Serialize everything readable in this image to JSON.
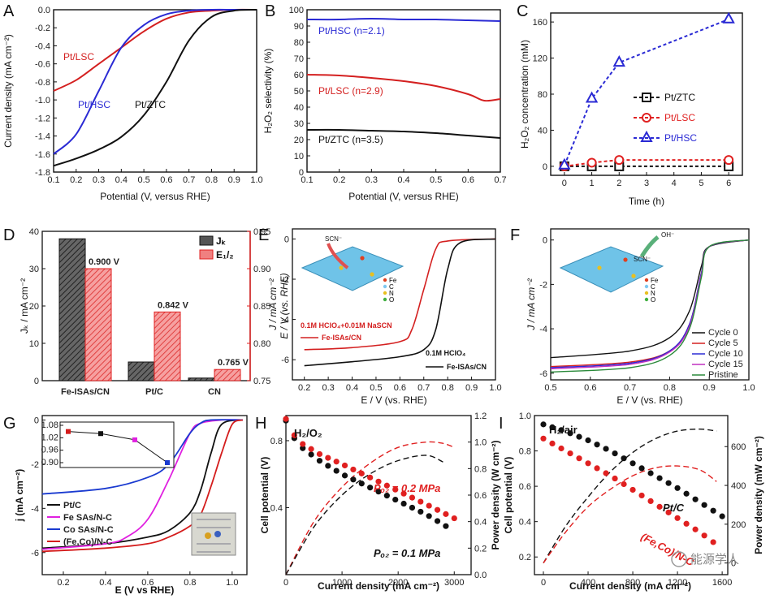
{
  "panels": {
    "A": {
      "letter": "A",
      "ylabel": "Current density (mA cm⁻²)",
      "xlabel": "Potential (V, versus RHE)",
      "xlim": [
        0.1,
        1.0
      ],
      "ylim": [
        -1.8,
        0.0
      ],
      "xticks": [
        "0.1",
        "0.2",
        "0.3",
        "0.4",
        "0.5",
        "0.6",
        "0.7",
        "0.8",
        "0.9",
        "1.0"
      ],
      "yticks": [
        "0.0",
        "-0.2",
        "-0.4",
        "-0.6",
        "-0.8",
        "-1.0",
        "-1.2",
        "-1.4",
        "-1.6",
        "-1.8"
      ],
      "labels": [
        "Pt/LSC",
        "Pt/HSC",
        "Pt/ZTC"
      ],
      "colors": [
        "#d42020",
        "#2a2ad4",
        "#111111"
      ]
    },
    "B": {
      "letter": "B",
      "ylabel": "H₂O₂ selectivity (%)",
      "xlabel": "Potential (V, versus RHE)",
      "xlim": [
        0.1,
        0.7
      ],
      "ylim": [
        0,
        100
      ],
      "xticks": [
        "0.1",
        "0.2",
        "0.3",
        "0.4",
        "0.5",
        "0.6",
        "0.7"
      ],
      "yticks": [
        "0",
        "10",
        "20",
        "30",
        "40",
        "50",
        "60",
        "70",
        "80",
        "90",
        "100"
      ],
      "labels": [
        "Pt/HSC (n=2.1)",
        "Pt/LSC (n=2.9)",
        "Pt/ZTC (n=3.5)"
      ]
    },
    "C": {
      "letter": "C",
      "ylabel": "H₂O₂ concentration (mM)",
      "xlabel": "Time (h)",
      "xlim": [
        0,
        6
      ],
      "ylim": [
        0,
        160
      ],
      "xticks": [
        "0",
        "1",
        "2",
        "3",
        "4",
        "5",
        "6"
      ],
      "yticks": [
        "0",
        "40",
        "80",
        "120",
        "160"
      ],
      "legend": [
        "Pt/ZTC",
        "Pt/LSC",
        "Pt/HSC"
      ]
    },
    "D": {
      "letter": "D",
      "ylabel_left": "Jₖ / mA cm⁻²",
      "ylabel_right": "E / V (vs. RHE)",
      "legend": [
        "Jₖ",
        "E₁/₂"
      ],
      "categories": [
        "Fe-ISAs/CN",
        "Pt/C",
        "CN"
      ],
      "yticks_left": [
        "0",
        "10",
        "20",
        "30",
        "40"
      ],
      "yticks_right": [
        "0.75",
        "0.80",
        "0.85",
        "0.90",
        "0.95"
      ],
      "annotations": [
        "0.900 V",
        "0.842 V",
        "0.765 V"
      ]
    },
    "E": {
      "letter": "E",
      "ylabel": "J / mA cm⁻²",
      "xlabel": "E / V (vs. RHE)",
      "xticks": [
        "0.2",
        "0.3",
        "0.4",
        "0.5",
        "0.6",
        "0.7",
        "0.8",
        "0.9",
        "1.0"
      ],
      "yticks": [
        "0",
        "-2",
        "-4",
        "-6"
      ],
      "ion": "SCN⁻",
      "atoms": [
        "Fe",
        "C",
        "N",
        "O"
      ],
      "red_condition": "0.1M HClO₄+0.01M NaSCN",
      "red_label": "Fe-ISAs/CN",
      "black_condition": "0.1M HClO₄",
      "black_label": "Fe-ISAs/CN"
    },
    "F": {
      "letter": "F",
      "ylabel": "J / mA cm⁻²",
      "xlabel": "E / V (vs. RHE)",
      "xticks": [
        "0.5",
        "0.6",
        "0.7",
        "0.8",
        "0.9",
        "1.0"
      ],
      "yticks": [
        "0",
        "-2",
        "-4",
        "-6"
      ],
      "ions": [
        "OH⁻",
        "SCN⁻"
      ],
      "atoms": [
        "Fe",
        "C",
        "N",
        "O"
      ],
      "legend": [
        "Cycle 0",
        "Cycle 5",
        "Cycle 10",
        "Cycle 15",
        "Pristine"
      ],
      "colors": [
        "#111111",
        "#d42020",
        "#2a2ad4",
        "#c030c0",
        "#2a8a3a"
      ]
    },
    "G": {
      "letter": "G",
      "ylabel": "j (mA cm⁻²)",
      "xlabel": "E (V vs RHE)",
      "xticks": [
        "0.2",
        "0.4",
        "0.6",
        "0.8",
        "1.0"
      ],
      "yticks": [
        "0",
        "-2",
        "-4",
        "-6"
      ],
      "inset_yticks": [
        "1.08",
        "1.02",
        "0.96",
        "0.90"
      ],
      "legend": [
        "Pt/C",
        "Fe SAs/N-C",
        "Co SAs/N-C",
        "(Fe,Co)/N-C"
      ],
      "colors": [
        "#111111",
        "#e020e0",
        "#1a3ad0",
        "#d41c1c"
      ]
    },
    "H": {
      "letter": "H",
      "gas": "H₂/O₂",
      "ylabel": "Cell potential (V)",
      "ylabel_right": "Power density (W cm⁻²)",
      "xlabel": "Current density (mA cm⁻²)",
      "xticks": [
        "0",
        "1000",
        "2000",
        "3000"
      ],
      "yticks": [
        "0.4",
        "0.8"
      ],
      "yticks_right": [
        "0.0",
        "0.2",
        "0.4",
        "0.6",
        "0.8",
        "1.0",
        "1.2"
      ],
      "label_red": "Pₒ₂ = 0.2 MPa",
      "label_black": "Pₒ₂ = 0.1 MPa"
    },
    "I": {
      "letter": "I",
      "gas": "H₂/air",
      "ylabel": "Cell potential (V)",
      "ylabel_right": "Power density (mW cm⁻²)",
      "xlabel": "Current density (mA cm⁻²)",
      "xticks": [
        "0",
        "400",
        "800",
        "1200",
        "1600"
      ],
      "yticks": [
        "0.2",
        "0.4",
        "0.6",
        "0.8",
        "1.0"
      ],
      "yticks_right": [
        "0",
        "200",
        "400",
        "600"
      ],
      "label_black": "Pt/C",
      "label_red": "(Fe,Co)/N-C",
      "watermark": "能源学人"
    }
  },
  "chart_data": [
    {
      "panel": "A",
      "type": "line",
      "xlabel": "Potential (V, versus RHE)",
      "ylabel": "Current density (mA cm-2)",
      "series": [
        {
          "name": "Pt/LSC",
          "x": [
            0.1,
            0.2,
            0.3,
            0.4,
            0.5,
            0.6,
            0.7,
            0.8,
            0.9,
            1.0
          ],
          "values": [
            -0.9,
            -0.78,
            -0.6,
            -0.42,
            -0.24,
            -0.1,
            -0.03,
            -0.01,
            0,
            0
          ]
        },
        {
          "name": "Pt/HSC",
          "x": [
            0.1,
            0.2,
            0.3,
            0.4,
            0.5,
            0.6,
            0.7,
            0.8,
            0.9,
            1.0
          ],
          "values": [
            -1.6,
            -1.38,
            -0.9,
            -0.42,
            -0.17,
            -0.05,
            -0.01,
            0,
            0,
            0
          ]
        },
        {
          "name": "Pt/ZTC",
          "x": [
            0.1,
            0.2,
            0.3,
            0.4,
            0.5,
            0.6,
            0.7,
            0.8,
            0.9,
            1.0
          ],
          "values": [
            -1.73,
            -1.65,
            -1.55,
            -1.41,
            -1.17,
            -0.8,
            -0.34,
            -0.08,
            -0.01,
            0
          ]
        }
      ]
    },
    {
      "panel": "B",
      "type": "line",
      "xlabel": "Potential (V, versus RHE)",
      "ylabel": "H2O2 selectivity (%)",
      "series": [
        {
          "name": "Pt/HSC",
          "x": [
            0.1,
            0.2,
            0.3,
            0.4,
            0.5,
            0.6,
            0.7
          ],
          "values": [
            94,
            94,
            94.5,
            94,
            94,
            93.5,
            93
          ]
        },
        {
          "name": "Pt/LSC",
          "x": [
            0.1,
            0.2,
            0.3,
            0.4,
            0.5,
            0.6,
            0.65,
            0.7
          ],
          "values": [
            60,
            59.5,
            58,
            56,
            53,
            48,
            44,
            45
          ]
        },
        {
          "name": "Pt/ZTC",
          "x": [
            0.1,
            0.2,
            0.3,
            0.4,
            0.5,
            0.6,
            0.7
          ],
          "values": [
            26,
            26,
            25.5,
            25,
            24,
            22.5,
            21
          ]
        }
      ]
    },
    {
      "panel": "C",
      "type": "scatter",
      "xlabel": "Time (h)",
      "ylabel": "H2O2 concentration (mM)",
      "x": [
        0,
        1,
        2,
        6
      ],
      "series": [
        {
          "name": "Pt/ZTC",
          "values": [
            0,
            0,
            0,
            0
          ]
        },
        {
          "name": "Pt/LSC",
          "values": [
            0,
            4,
            7,
            7
          ]
        },
        {
          "name": "Pt/HSC",
          "values": [
            1,
            75,
            115,
            163
          ]
        }
      ]
    },
    {
      "panel": "D",
      "type": "bar",
      "categories": [
        "Fe-ISAs/CN",
        "Pt/C",
        "CN"
      ],
      "series": [
        {
          "name": "Jk (mA cm-2)",
          "values": [
            38,
            5,
            0.7
          ]
        },
        {
          "name": "E1/2 (V vs. RHE)",
          "values": [
            0.9,
            0.842,
            0.765
          ]
        }
      ],
      "ylim_left": [
        0,
        40
      ],
      "ylim_right": [
        0.75,
        0.95
      ]
    },
    {
      "panel": "E",
      "type": "line",
      "xlabel": "E / V (vs. RHE)",
      "ylabel": "J / mA cm-2",
      "series": [
        {
          "name": "Fe-ISAs/CN (0.1M HClO4+0.01M NaSCN)",
          "x": [
            0.2,
            0.4,
            0.6,
            0.65,
            0.7,
            0.75,
            0.8,
            1.0
          ],
          "values": [
            -5.5,
            -5.4,
            -5.1,
            -4.5,
            -2.5,
            -0.5,
            -0.1,
            0
          ]
        },
        {
          "name": "Fe-ISAs/CN (0.1M HClO4)",
          "x": [
            0.2,
            0.4,
            0.6,
            0.7,
            0.75,
            0.8,
            0.85,
            1.0
          ],
          "values": [
            -6.3,
            -6.1,
            -5.85,
            -5.5,
            -4.5,
            -1.5,
            -0.2,
            0
          ]
        }
      ]
    },
    {
      "panel": "F",
      "type": "line",
      "xlabel": "E / V (vs. RHE)",
      "ylabel": "J / mA cm-2",
      "series": [
        {
          "name": "Cycle 0",
          "x": [
            0.5,
            0.7,
            0.8,
            0.85,
            0.88,
            0.9,
            1.0
          ],
          "values": [
            -5.3,
            -5.0,
            -4.4,
            -3.2,
            -1.2,
            -0.3,
            0
          ]
        },
        {
          "name": "Cycle 5",
          "x": [
            0.5,
            0.7,
            0.8,
            0.85,
            0.88,
            0.9,
            1.0
          ],
          "values": [
            -5.7,
            -5.5,
            -5.0,
            -3.8,
            -1.5,
            -0.3,
            0
          ]
        },
        {
          "name": "Cycle 10",
          "x": [
            0.5,
            0.7,
            0.8,
            0.85,
            0.88,
            0.9,
            1.0
          ],
          "values": [
            -5.75,
            -5.55,
            -5.0,
            -3.8,
            -1.5,
            -0.3,
            0
          ]
        },
        {
          "name": "Cycle 15",
          "x": [
            0.5,
            0.7,
            0.8,
            0.85,
            0.88,
            0.9,
            1.0
          ],
          "values": [
            -5.8,
            -5.6,
            -5.05,
            -3.9,
            -1.6,
            -0.3,
            0
          ]
        },
        {
          "name": "Pristine",
          "x": [
            0.5,
            0.7,
            0.8,
            0.85,
            0.88,
            0.9,
            1.0
          ],
          "values": [
            -5.95,
            -5.75,
            -5.2,
            -4.0,
            -1.7,
            -0.3,
            0
          ]
        }
      ]
    },
    {
      "panel": "G",
      "type": "line",
      "xlabel": "E (V vs RHE)",
      "ylabel": "j (mA cm-2)",
      "series": [
        {
          "name": "Pt/C",
          "x": [
            0.1,
            0.4,
            0.6,
            0.7,
            0.8,
            0.85,
            0.9,
            0.95,
            1.05
          ],
          "values": [
            -5.8,
            -5.6,
            -5.3,
            -5.0,
            -4.2,
            -3.2,
            -1.5,
            -0.2,
            0
          ]
        },
        {
          "name": "Fe SAs/N-C",
          "x": [
            0.1,
            0.4,
            0.5,
            0.6,
            0.7,
            0.8,
            0.85,
            0.95,
            1.05
          ],
          "values": [
            -5.85,
            -5.6,
            -5.3,
            -4.5,
            -2.7,
            -0.6,
            -0.15,
            0,
            0
          ]
        },
        {
          "name": "Co SAs/N-C",
          "x": [
            0.1,
            0.4,
            0.6,
            0.7,
            0.8,
            0.85,
            0.9,
            1.05
          ],
          "values": [
            -3.35,
            -3.1,
            -2.6,
            -2.0,
            -0.6,
            -0.15,
            0,
            0
          ]
        },
        {
          "name": "(Fe,Co)/N-C",
          "x": [
            0.1,
            0.4,
            0.6,
            0.7,
            0.8,
            0.85,
            0.9,
            0.95,
            1.0,
            1.05
          ],
          "values": [
            -5.95,
            -5.8,
            -5.6,
            -5.3,
            -4.8,
            -4.3,
            -3.0,
            -1.5,
            -0.2,
            0
          ]
        }
      ],
      "inset": {
        "values": [
          1.05,
          1.04,
          1.01,
          0.9
        ]
      }
    },
    {
      "panel": "H",
      "type": "line",
      "xlabel": "Current density (mA cm-2)",
      "series": [
        {
          "name": "Cell potential, P O2 = 0.2 MPa",
          "x": [
            0,
            200,
            600,
            1000,
            1500,
            2000,
            2500,
            3100
          ],
          "values": [
            0.93,
            0.8,
            0.72,
            0.66,
            0.58,
            0.5,
            0.42,
            0.32
          ]
        },
        {
          "name": "Cell potential, P O2 = 0.1 MPa",
          "x": [
            0,
            200,
            600,
            1000,
            1500,
            2000,
            2500,
            2900
          ],
          "values": [
            0.92,
            0.78,
            0.68,
            0.6,
            0.52,
            0.44,
            0.36,
            0.28
          ]
        },
        {
          "name": "Power density, P O2 = 0.2 MPa (W cm-2)",
          "x": [
            0,
            500,
            1000,
            1500,
            2000,
            2500,
            2800,
            3000
          ],
          "values": [
            0,
            0.4,
            0.66,
            0.84,
            0.96,
            1.0,
            0.99,
            0.96
          ]
        },
        {
          "name": "Power density, P O2 = 0.1 MPa (W cm-2)",
          "x": [
            0,
            500,
            1000,
            1500,
            2000,
            2500,
            2800
          ],
          "values": [
            0,
            0.36,
            0.6,
            0.76,
            0.86,
            0.9,
            0.85
          ]
        }
      ]
    },
    {
      "panel": "I",
      "type": "line",
      "xlabel": "Current density (mA cm-2)",
      "series": [
        {
          "name": "Cell potential, Pt/C",
          "x": [
            0,
            200,
            400,
            600,
            800,
            1000,
            1200,
            1400,
            1600
          ],
          "values": [
            0.95,
            0.91,
            0.86,
            0.8,
            0.73,
            0.66,
            0.59,
            0.51,
            0.43
          ]
        },
        {
          "name": "Cell potential, (Fe,Co)/N-C",
          "x": [
            0,
            200,
            400,
            600,
            800,
            1000,
            1200,
            1400,
            1550
          ],
          "values": [
            0.87,
            0.8,
            0.73,
            0.66,
            0.58,
            0.5,
            0.42,
            0.34,
            0.27
          ]
        },
        {
          "name": "Power density, Pt/C (mW cm-2)",
          "x": [
            0,
            200,
            400,
            600,
            800,
            1000,
            1200,
            1400,
            1550
          ],
          "values": [
            0,
            190,
            340,
            470,
            570,
            640,
            680,
            690,
            680
          ]
        },
        {
          "name": "Power density, (Fe,Co)/N-C (mW cm-2)",
          "x": [
            0,
            200,
            400,
            600,
            800,
            1000,
            1200,
            1400,
            1550
          ],
          "values": [
            0,
            160,
            290,
            380,
            450,
            490,
            500,
            480,
            420
          ]
        }
      ]
    }
  ]
}
